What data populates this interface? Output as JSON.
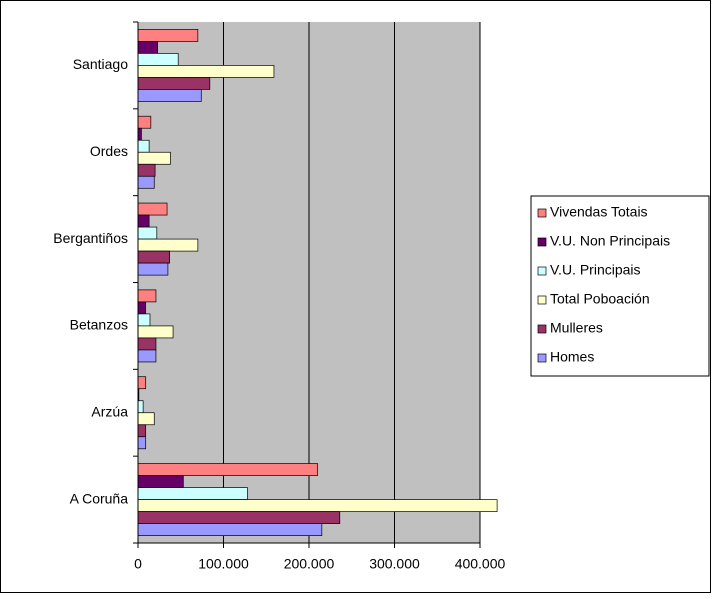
{
  "chart_data": {
    "type": "bar",
    "orientation": "horizontal",
    "categories": [
      "Santiago",
      "Ordes",
      "Bergantiños",
      "Betanzos",
      "Arzúa",
      "A Coruña"
    ],
    "series": [
      {
        "name": "Vivendas Totais",
        "color": "#FF8080",
        "values": [
          70000,
          15000,
          34000,
          21000,
          9000,
          210000
        ]
      },
      {
        "name": "V.U. Non Principais",
        "color": "#660066",
        "values": [
          23000,
          4000,
          13000,
          9000,
          1000,
          53000
        ]
      },
      {
        "name": "V.U. Principais",
        "color": "#CCFFFF",
        "values": [
          47000,
          13000,
          22000,
          14000,
          6000,
          128000
        ]
      },
      {
        "name": "Total Poboación",
        "color": "#FFFFCC",
        "values": [
          159000,
          38000,
          70000,
          41000,
          19000,
          420000
        ]
      },
      {
        "name": "Mulleres",
        "color": "#993366",
        "values": [
          84000,
          20000,
          37000,
          21000,
          9000,
          236000
        ]
      },
      {
        "name": "Homes",
        "color": "#9999FF",
        "values": [
          74000,
          19000,
          35000,
          21000,
          9000,
          215000
        ]
      }
    ],
    "xlim": [
      0,
      400000
    ],
    "xticks": [
      0,
      {
        "value": 100000,
        "label": "100.000"
      },
      {
        "value": 200000,
        "label": "200.000"
      },
      {
        "value": 300000,
        "label": "300.000"
      },
      {
        "value": 400000,
        "label": "400.000"
      }
    ],
    "grid": true,
    "legend": "right"
  }
}
